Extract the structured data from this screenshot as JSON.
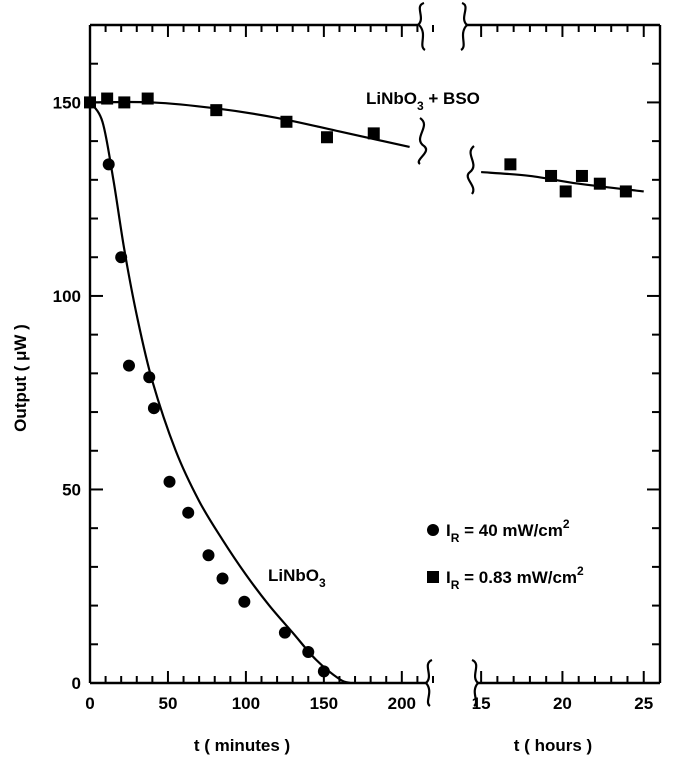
{
  "chart_data": {
    "type": "scatter",
    "ylabel": "Output ( μW )",
    "ylim": [
      0,
      170
    ],
    "yticks": [
      0,
      50,
      100,
      150
    ],
    "grid": false,
    "panels": [
      {
        "id": "minutes",
        "xlabel": "t ( minutes )",
        "xlim": [
          0,
          220
        ],
        "xticks": [
          0,
          50,
          100,
          150,
          200
        ]
      },
      {
        "id": "hours",
        "xlabel": "t ( hours )",
        "xlim": [
          14.5,
          26
        ],
        "xticks": [
          15,
          20,
          25
        ]
      }
    ],
    "series": [
      {
        "marker": "circle",
        "panel": "minutes",
        "points": [
          [
            0,
            150
          ],
          [
            12,
            134
          ],
          [
            20,
            110
          ],
          [
            25,
            82
          ],
          [
            38,
            79
          ],
          [
            41,
            71
          ],
          [
            51,
            52
          ],
          [
            63,
            44
          ],
          [
            76,
            33
          ],
          [
            85,
            27
          ],
          [
            99,
            21
          ],
          [
            125,
            13
          ],
          [
            140,
            8
          ],
          [
            150,
            3
          ]
        ],
        "fit": [
          [
            0,
            150
          ],
          [
            8,
            145
          ],
          [
            15,
            130
          ],
          [
            22,
            112
          ],
          [
            30,
            95
          ],
          [
            40,
            78
          ],
          [
            55,
            60
          ],
          [
            70,
            47
          ],
          [
            85,
            37
          ],
          [
            100,
            28
          ],
          [
            115,
            20
          ],
          [
            130,
            13
          ],
          [
            145,
            6
          ],
          [
            160,
            1
          ],
          [
            167,
            0
          ]
        ]
      },
      {
        "marker": "square",
        "panel": "minutes",
        "points": [
          [
            0,
            150
          ],
          [
            11,
            151
          ],
          [
            22,
            150
          ],
          [
            37,
            151
          ],
          [
            81,
            148
          ],
          [
            126,
            145
          ],
          [
            152,
            141
          ],
          [
            182,
            142
          ]
        ],
        "fit": [
          [
            0,
            150
          ],
          [
            40,
            150
          ],
          [
            80,
            148.5
          ],
          [
            120,
            146
          ],
          [
            160,
            142.5
          ],
          [
            205,
            138.5
          ]
        ]
      },
      {
        "marker": "square",
        "panel": "hours",
        "points": [
          [
            16.8,
            134
          ],
          [
            19.3,
            131
          ],
          [
            20.2,
            127
          ],
          [
            21.2,
            131
          ],
          [
            22.3,
            129
          ],
          [
            23.9,
            127
          ]
        ],
        "fit": [
          [
            15,
            132
          ],
          [
            18,
            131
          ],
          [
            21,
            129
          ],
          [
            25,
            127
          ]
        ]
      }
    ],
    "annotations": [
      {
        "text": "LiNbO",
        "sub": "3",
        "tail": " + BSO"
      },
      {
        "text": "LiNbO",
        "sub": "3",
        "tail": ""
      }
    ],
    "legend": {
      "placement": "lower-right",
      "entries": [
        {
          "marker": "circle",
          "lead": "I",
          "sub": "R",
          "eq": " = 40 mW/cm",
          "sup": "2"
        },
        {
          "marker": "square",
          "lead": "I",
          "sub": "R",
          "eq": " = 0.83 mW/cm",
          "sup": "2"
        }
      ]
    }
  }
}
